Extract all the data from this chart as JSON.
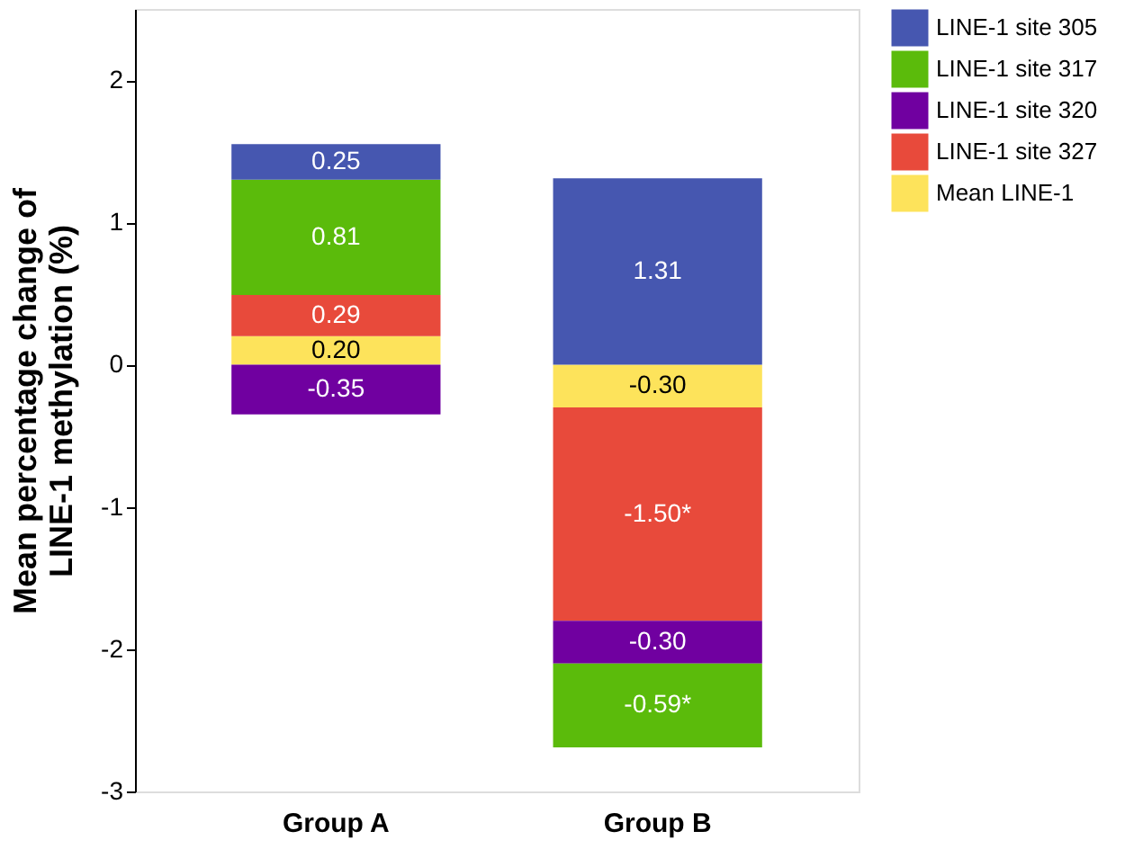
{
  "chart_data": {
    "type": "bar",
    "stacked": true,
    "categories": [
      "Group A",
      "Group B"
    ],
    "ylabel": "Mean percentage change of\nLINE-1 methylation (%)",
    "ylim": [
      -3,
      2.5
    ],
    "yticks": [
      -3,
      -2,
      -1,
      0,
      1,
      2
    ],
    "grid": false,
    "legend": "top right",
    "series": [
      {
        "name": "Mean LINE-1",
        "color": "#fde35b",
        "values": [
          0.2,
          -0.3
        ],
        "value_labels": [
          "0.20",
          "-0.30"
        ]
      },
      {
        "name": "LINE-1 site 327",
        "color": "#e84a3b",
        "values": [
          0.29,
          -1.5
        ],
        "value_labels": [
          "0.29",
          "-1.50*"
        ]
      },
      {
        "name": "LINE-1 site 320",
        "color": "#7000a0",
        "values": [
          -0.35,
          -0.3
        ],
        "value_labels": [
          "-0.35",
          "-0.30"
        ]
      },
      {
        "name": "LINE-1 site 317",
        "color": "#5bbb0b",
        "values": [
          0.81,
          -0.59
        ],
        "value_labels": [
          "0.81",
          "-0.59*"
        ]
      },
      {
        "name": "LINE-1 site 305",
        "color": "#4657b0",
        "values": [
          0.25,
          1.31
        ],
        "value_labels": [
          "0.25",
          "1.31"
        ]
      }
    ]
  }
}
